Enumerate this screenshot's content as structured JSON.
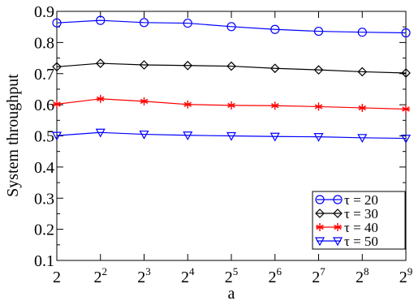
{
  "chart_data": {
    "type": "line",
    "title": "",
    "xlabel": "a",
    "ylabel": "System throughput",
    "x": [
      1,
      2,
      3,
      4,
      5,
      6,
      7,
      8,
      9
    ],
    "x_tick_labels": [
      {
        "base": "2",
        "exp": ""
      },
      {
        "base": "2",
        "exp": "2"
      },
      {
        "base": "2",
        "exp": "3"
      },
      {
        "base": "2",
        "exp": "4"
      },
      {
        "base": "2",
        "exp": "5"
      },
      {
        "base": "2",
        "exp": "6"
      },
      {
        "base": "2",
        "exp": "7"
      },
      {
        "base": "2",
        "exp": "8"
      },
      {
        "base": "2",
        "exp": "9"
      }
    ],
    "x_scale": "log2",
    "xlim": [
      1,
      9
    ],
    "ylim": [
      0.1,
      0.9
    ],
    "y_ticks": [
      "0.1",
      "0.2",
      "0.3",
      "0.4",
      "0.5",
      "0.6",
      "0.7",
      "0.8",
      "0.9"
    ],
    "grid": false,
    "legend_position": "bottom-right",
    "series": [
      {
        "name": "τ = 20",
        "color": "#0000ff",
        "marker": "circle",
        "values": [
          0.863,
          0.871,
          0.864,
          0.862,
          0.851,
          0.842,
          0.836,
          0.833,
          0.831
        ]
      },
      {
        "name": "τ = 30",
        "color": "#000000",
        "marker": "diamond",
        "values": [
          0.722,
          0.733,
          0.728,
          0.726,
          0.724,
          0.717,
          0.712,
          0.706,
          0.702
        ]
      },
      {
        "name": "τ = 40",
        "color": "#ff0000",
        "marker": "star",
        "values": [
          0.602,
          0.619,
          0.611,
          0.601,
          0.598,
          0.597,
          0.594,
          0.59,
          0.586
        ]
      },
      {
        "name": "τ = 50",
        "color": "#0000ff",
        "marker": "triangle-down",
        "values": [
          0.501,
          0.511,
          0.505,
          0.502,
          0.5,
          0.498,
          0.497,
          0.494,
          0.492
        ]
      }
    ]
  }
}
